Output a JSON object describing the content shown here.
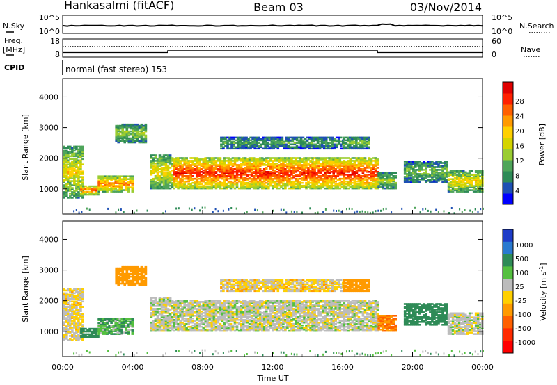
{
  "header": {
    "station": "Hankasalmi (fitACF)",
    "beam": "Beam 03",
    "date": "03/Nov/2014"
  },
  "noise_panel": {
    "left_label": "N.Sky",
    "right_label": "N.Search",
    "left_ticks": [
      "10^5",
      "10^0"
    ],
    "right_ticks": [
      "10^5",
      "10^0"
    ]
  },
  "freq_panel": {
    "left_label_1": "Freq.",
    "left_label_2": "[MHz]",
    "right_label": "Nave",
    "left_ticks": [
      "18",
      "8"
    ],
    "right_ticks": [
      "60",
      "0"
    ]
  },
  "cpid": {
    "label": "CPID",
    "text": "normal (fast stereo) 153"
  },
  "power_panel": {
    "ylabel": "Slant Range [km]",
    "yticks": [
      "4000",
      "3000",
      "2000",
      "1000"
    ],
    "colorbar_label": "Power [dB]",
    "colorbar_ticks": [
      "28",
      "24",
      "20",
      "16",
      "12",
      "8",
      "4"
    ],
    "colors": [
      "#0000ff",
      "#1e50b4",
      "#2e8b57",
      "#4fa55a",
      "#9acd32",
      "#d4d400",
      "#ffd000",
      "#ff9a00",
      "#ff6000",
      "#ff2000",
      "#e00000"
    ]
  },
  "velocity_panel": {
    "ylabel": "Slant Range [km]",
    "yticks": [
      "4000",
      "3000",
      "2000",
      "1000"
    ],
    "colorbar_label": "Velocity [m s",
    "colorbar_unit_exp": "-1",
    "colorbar_ticks": [
      "1000",
      "500",
      "100",
      "25",
      "-25",
      "-100",
      "-500",
      "-1000"
    ],
    "colors": [
      "#1e3cc8",
      "#2a7ad0",
      "#2e8b57",
      "#55c040",
      "#bcbcbc",
      "#ffd000",
      "#ff9a00",
      "#ff6000",
      "#ff2a00",
      "#ff0000"
    ]
  },
  "x_axis": {
    "label": "Time UT",
    "ticks": [
      "00:00",
      "04:00",
      "08:00",
      "12:00",
      "16:00",
      "20:00",
      "00:00"
    ]
  },
  "chart_data": {
    "type": "heatmap",
    "title": "Hankasalmi (fitACF) Beam 03 03/Nov/2014",
    "xlabel": "Time UT",
    "ylabel": "Slant Range [km]",
    "x_range_hours": [
      0,
      24
    ],
    "y_range_km": [
      180,
      4600
    ],
    "power_colorbar_dB": [
      4,
      8,
      12,
      16,
      20,
      24,
      28
    ],
    "velocity_colorbar_ms": [
      1000,
      500,
      100,
      25,
      -25,
      -100,
      -500,
      -1000
    ],
    "frequency_band_MHz": [
      [
        0,
        6,
        10.5
      ],
      [
        6,
        18,
        11.5
      ],
      [
        18,
        24,
        10.5
      ]
    ],
    "regions": [
      {
        "time": [
          0.0,
          1.2
        ],
        "range": [
          700,
          2400
        ],
        "power_dB": 18,
        "velocity_ms": -25
      },
      {
        "time": [
          1.0,
          2.0
        ],
        "range": [
          800,
          1100
        ],
        "power_dB": 26,
        "velocity_ms": 100
      },
      {
        "time": [
          2.0,
          4.0
        ],
        "range": [
          900,
          1400
        ],
        "power_dB": 24,
        "velocity_ms": 50
      },
      {
        "time": [
          3.0,
          4.8
        ],
        "range": [
          2500,
          3100
        ],
        "power_dB": 14,
        "velocity_ms": -150
      },
      {
        "time": [
          5.0,
          6.3
        ],
        "range": [
          1000,
          2100
        ],
        "power_dB": 18,
        "velocity_ms": 0
      },
      {
        "time": [
          6.3,
          18.0
        ],
        "range": [
          1000,
          2000
        ],
        "power_dB": 28,
        "velocity_ms": 0
      },
      {
        "time": [
          9.0,
          16.0
        ],
        "range": [
          2300,
          2700
        ],
        "power_dB": 10,
        "velocity_ms": -30
      },
      {
        "time": [
          16.0,
          17.5
        ],
        "range": [
          2300,
          2700
        ],
        "power_dB": 12,
        "velocity_ms": -200
      },
      {
        "time": [
          18.0,
          19.0
        ],
        "range": [
          1000,
          1500
        ],
        "power_dB": 14,
        "velocity_ms": -300
      },
      {
        "time": [
          19.5,
          22.0
        ],
        "range": [
          1200,
          1900
        ],
        "power_dB": 12,
        "velocity_ms": 200
      },
      {
        "time": [
          22.0,
          24.0
        ],
        "range": [
          900,
          1600
        ],
        "power_dB": 18,
        "velocity_ms": 0
      }
    ]
  }
}
